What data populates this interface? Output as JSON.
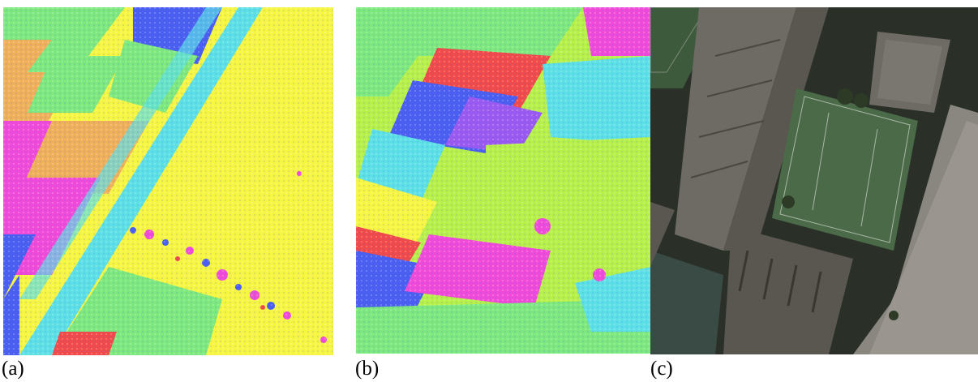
{
  "panels": [
    {
      "caption": "(a)",
      "description_type": "segmentation-map"
    },
    {
      "caption": "(b)",
      "description_type": "segmentation-map"
    },
    {
      "caption": "(c)",
      "description_type": "aerial-photo"
    }
  ],
  "colors": {
    "yellow": "#f5f542",
    "green": "#7de87d",
    "cyan": "#5ce0e6",
    "blue": "#4a5ef0",
    "magenta": "#f04ad8",
    "orange": "#f0b05a",
    "red": "#f04a4a",
    "lime": "#b8f04a",
    "purple": "#9a5af0",
    "dark": "#2a3028",
    "roof": "#6e6a64",
    "court": "#4a6a48",
    "water": "#3a4a44"
  }
}
